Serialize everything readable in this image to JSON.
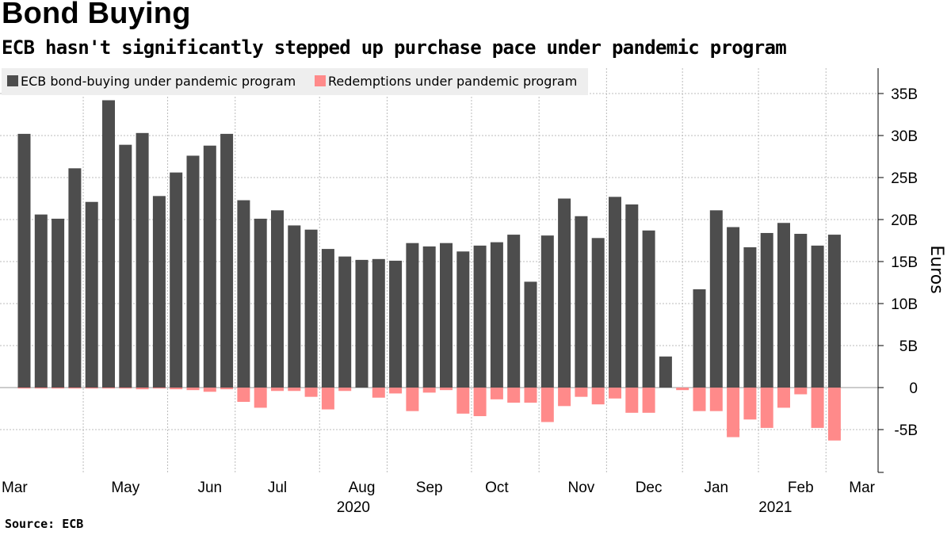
{
  "header": {
    "title": "Bond Buying",
    "subtitle": "ECB hasn't significantly stepped up purchase pace under pandemic program"
  },
  "footer": {
    "source": "Source:  ECB"
  },
  "colors": {
    "purchases": "#4d4d4d",
    "redemptions": "#ff8a8a",
    "grid": "#bbbbbb",
    "legend_bg": "#eeeeee"
  },
  "chart_data": {
    "type": "bar",
    "title": "Bond Buying",
    "subtitle": "ECB hasn't significantly stepped up purchase pace under pandemic program",
    "ylabel": "Euros",
    "xlabel": "",
    "ylim": [
      -10,
      37.5
    ],
    "y_ticks": [
      -5,
      0,
      5,
      10,
      15,
      20,
      25,
      30,
      35
    ],
    "y_tick_labels": [
      "-5B",
      "0",
      "5B",
      "10B",
      "15B",
      "20B",
      "25B",
      "30B",
      "35B"
    ],
    "x_tick_labels": [
      "Mar",
      "May",
      "Jun",
      "Jul",
      "Aug",
      "Sep",
      "Oct",
      "Nov",
      "Dec",
      "Jan",
      "Feb",
      "Mar"
    ],
    "x_tick_weeks": [
      0,
      6,
      11,
      15,
      20,
      24,
      28,
      33,
      37,
      41,
      46,
      50
    ],
    "year_labels": [
      {
        "label": "2020",
        "week": 19.5
      },
      {
        "label": "2021",
        "week": 44.5
      }
    ],
    "grid_weeks": [
      3.5,
      8.5,
      12.5,
      17.5,
      21.5,
      26.5,
      30.5,
      34.5,
      39,
      43.5,
      47.5
    ],
    "legend": [
      "ECB bond-buying under pandemic program",
      "Redemptions under pandemic program"
    ],
    "legend_position": "top-left",
    "series": [
      {
        "name": "ECB bond-buying under pandemic program",
        "values": [
          30.2,
          20.6,
          20.1,
          26.1,
          22.1,
          34.2,
          28.9,
          30.3,
          22.8,
          25.6,
          27.6,
          28.8,
          30.2,
          22.3,
          20.1,
          21.1,
          19.3,
          18.8,
          16.5,
          15.6,
          15.2,
          15.3,
          15.1,
          17.2,
          16.8,
          17.2,
          16.2,
          16.9,
          17.3,
          18.2,
          12.6,
          18.1,
          22.5,
          20.4,
          17.8,
          22.7,
          21.8,
          18.7,
          3.7,
          0,
          11.7,
          21.1,
          19.1,
          16.7,
          18.4,
          19.6,
          18.3,
          16.9,
          18.2
        ]
      },
      {
        "name": "Redemptions under pandemic program",
        "values": [
          -0.1,
          -0.1,
          -0.1,
          -0.1,
          -0.1,
          -0.1,
          -0.1,
          -0.2,
          -0.1,
          -0.2,
          -0.3,
          -0.5,
          -0.2,
          -1.7,
          -2.4,
          -0.4,
          -0.4,
          -1.1,
          -2.6,
          -0.4,
          0,
          -1.2,
          -0.7,
          -2.8,
          -0.6,
          -0.3,
          -3.1,
          -3.4,
          -1.4,
          -1.8,
          -1.8,
          -4.1,
          -2.2,
          -1.1,
          -2.0,
          -1.3,
          -3.0,
          -3.0,
          0,
          -0.3,
          -2.8,
          -2.8,
          -5.9,
          -3.8,
          -4.8,
          -2.4,
          -0.8,
          -4.8,
          -6.3
        ]
      }
    ]
  }
}
